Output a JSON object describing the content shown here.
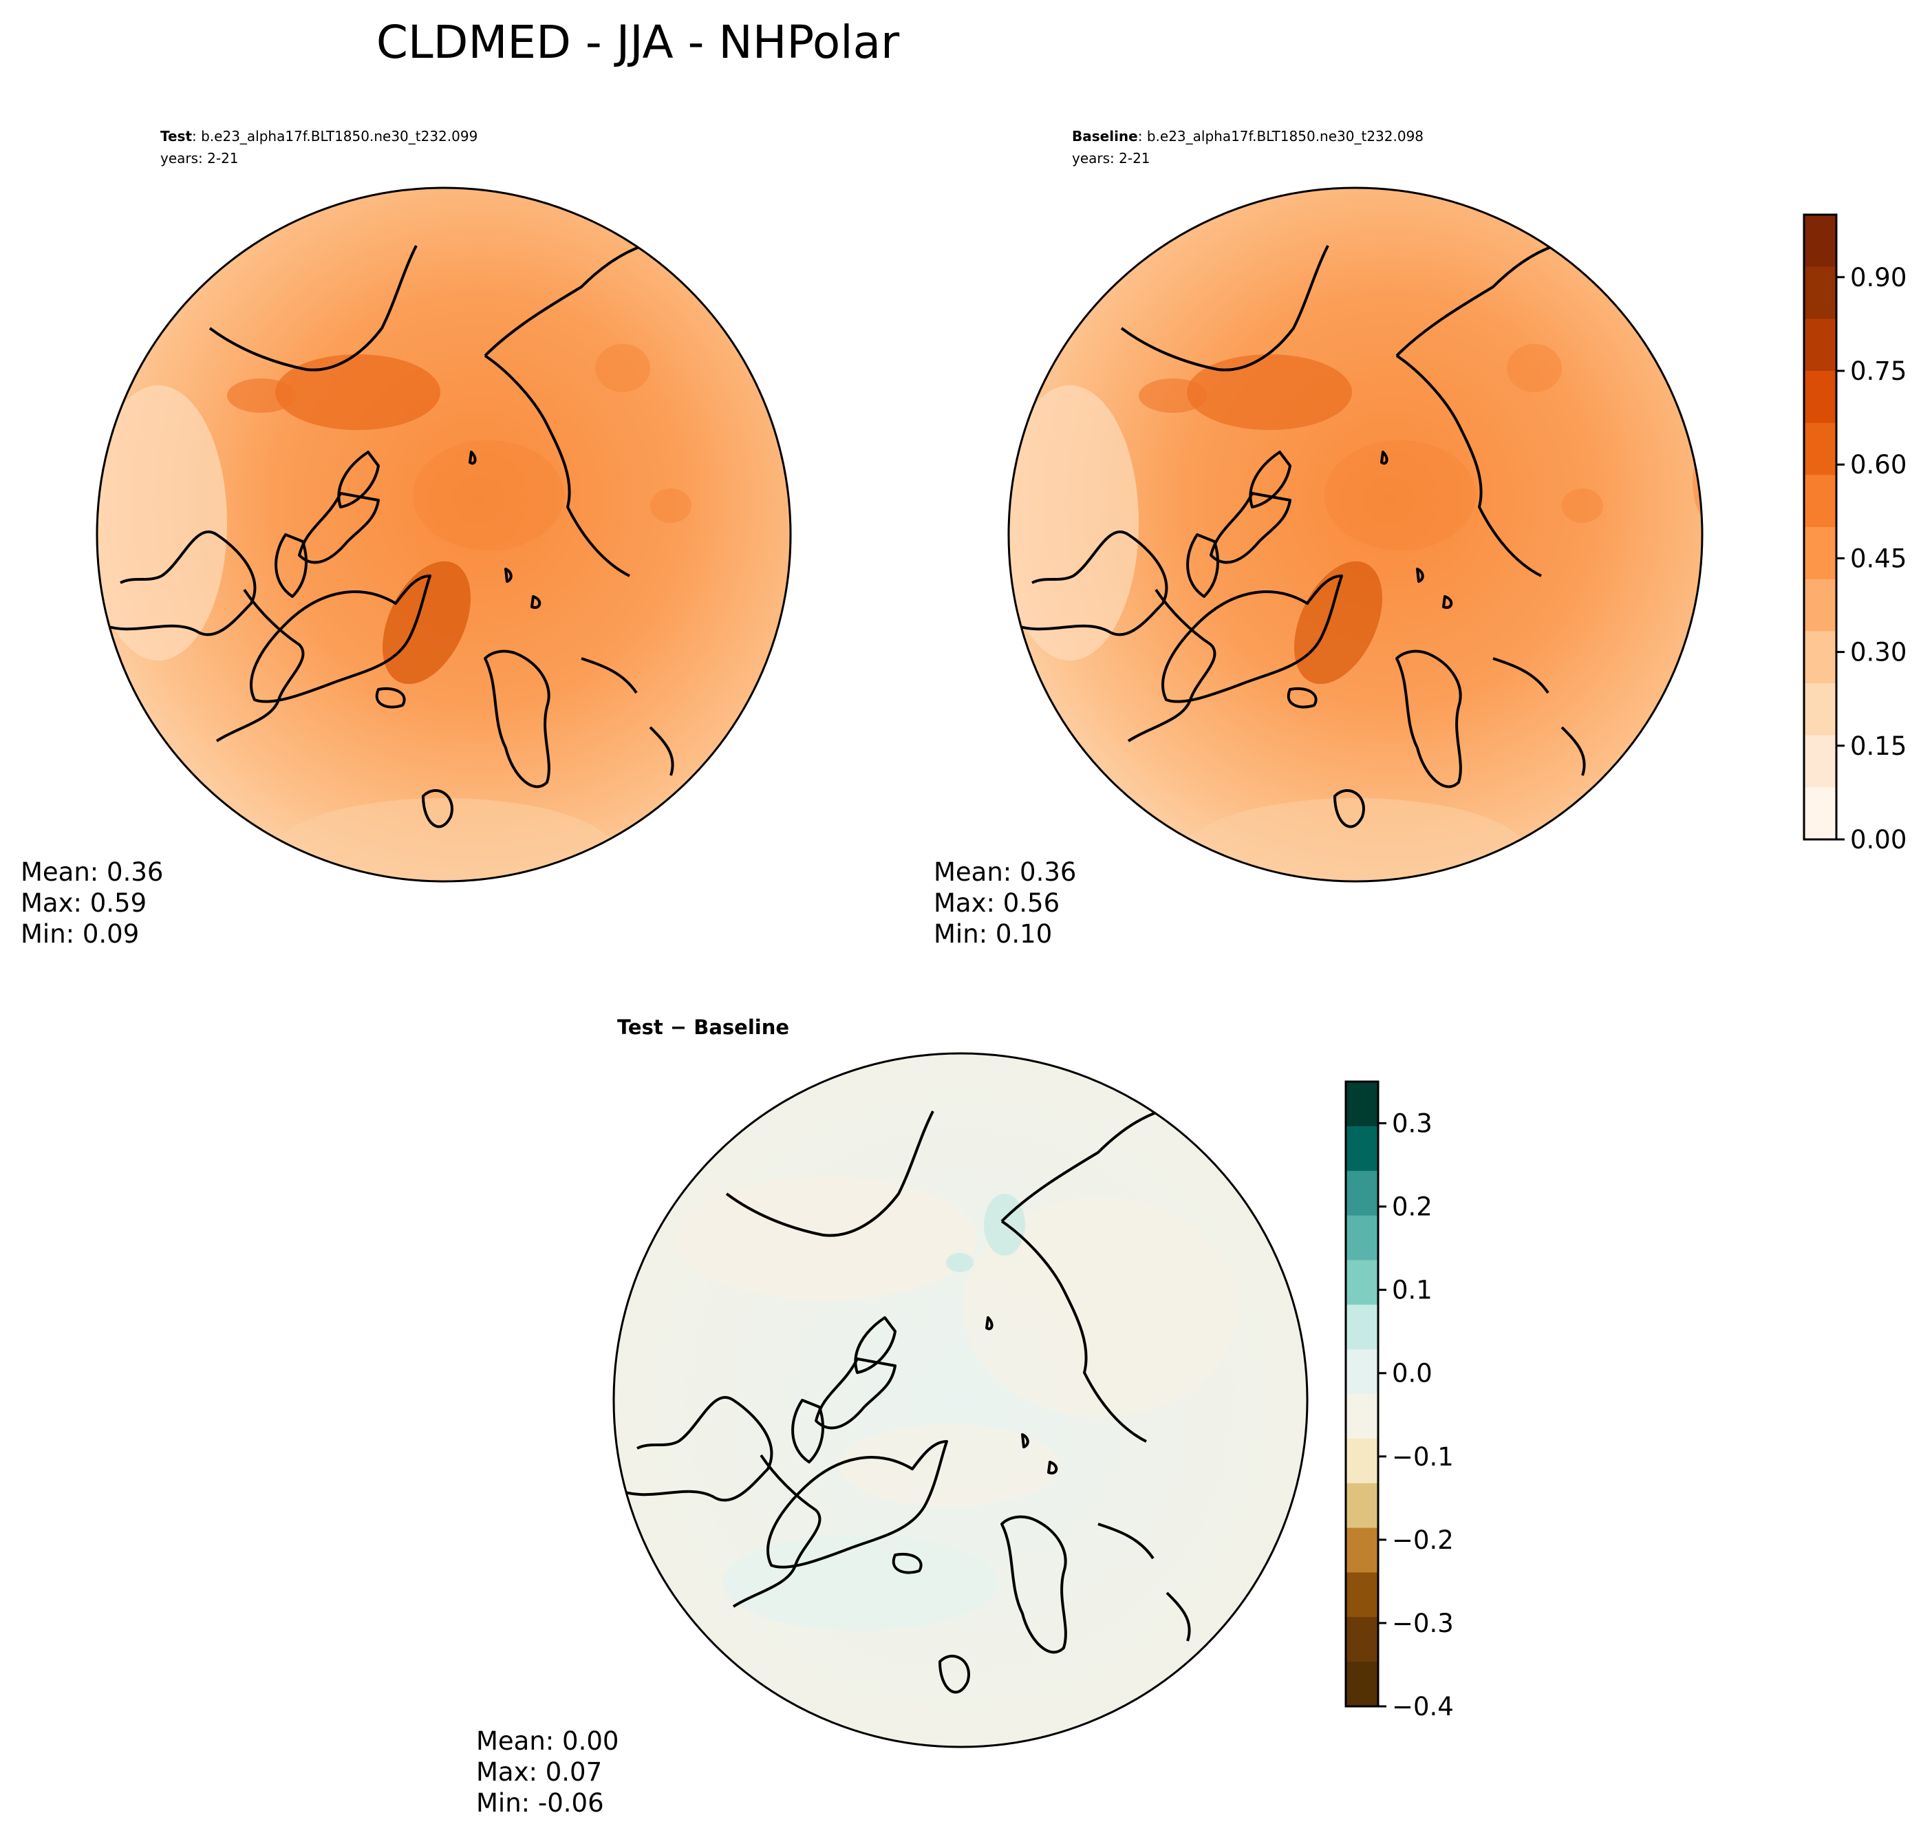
{
  "title": "CLDMED - JJA - NHPolar",
  "panels": {
    "test": {
      "label_bold": "Test",
      "case": ": b.e23_alpha17f.BLT1850.ne30_t232.099",
      "years": "years: 2-21",
      "stats": [
        "Mean:  0.36",
        "Max:  0.59",
        "Min:  0.09"
      ]
    },
    "baseline": {
      "label_bold": "Baseline",
      "case": ": b.e23_alpha17f.BLT1850.ne30_t232.098",
      "years": "years: 2-21",
      "stats": [
        "Mean:  0.36",
        "Max:  0.56",
        "Min:  0.10"
      ]
    },
    "diff": {
      "label": "Test − Baseline",
      "stats": [
        "Mean:  0.00",
        "Max:  0.07",
        "Min: -0.06"
      ]
    }
  },
  "colorbars": {
    "main": {
      "ticks": [
        "0.00",
        "0.15",
        "0.30",
        "0.45",
        "0.60",
        "0.75",
        "0.90"
      ],
      "tick_values": [
        0,
        0.15,
        0.3,
        0.45,
        0.6,
        0.75,
        0.9
      ],
      "range": [
        0,
        1
      ],
      "colors": [
        "#fff5eb",
        "#fee8d3",
        "#fdd9b4",
        "#fdc692",
        "#fdad6d",
        "#fd9649",
        "#f67e2d",
        "#ea6513",
        "#d94d04",
        "#b53d03",
        "#933203",
        "#7f2704"
      ]
    },
    "diff": {
      "ticks": [
        "0.3",
        "0.2",
        "0.1",
        "0.0",
        "−0.1",
        "−0.2",
        "−0.3",
        "−0.4"
      ],
      "tick_values": [
        0.3,
        0.2,
        0.1,
        0.0,
        -0.1,
        -0.2,
        -0.3,
        -0.4
      ],
      "range": [
        -0.4,
        0.35
      ],
      "colors": [
        "#003c30",
        "#01665e",
        "#35978f",
        "#5ab4ac",
        "#80cdc1",
        "#c7eae5",
        "#e6f2ef",
        "#f5f2e8",
        "#f6e8c3",
        "#dfc27d",
        "#bf812d",
        "#8c510a",
        "#6b3a09",
        "#543005"
      ]
    }
  }
}
